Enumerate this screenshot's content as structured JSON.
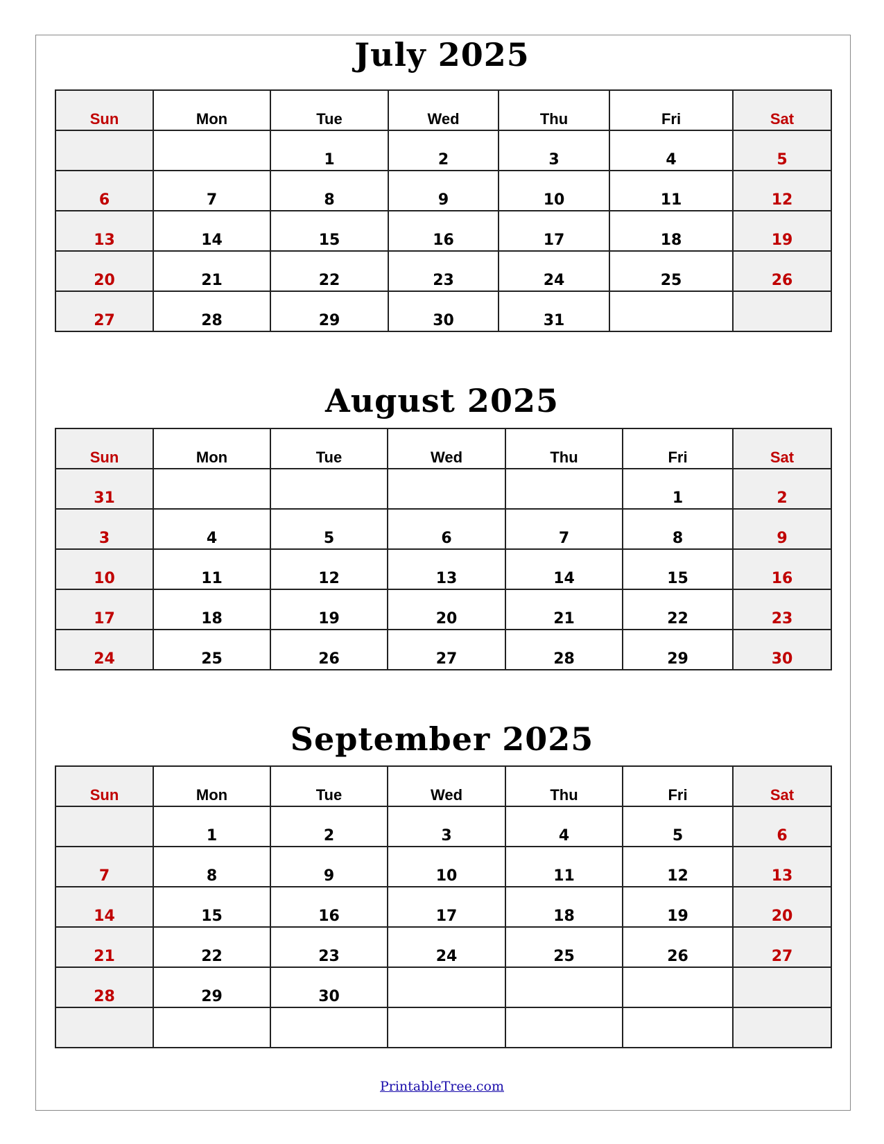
{
  "weekday_labels": [
    "Sun",
    "Mon",
    "Tue",
    "Wed",
    "Thu",
    "Fri",
    "Sat"
  ],
  "colors": {
    "weekend_text": "#c00000",
    "weekend_bg": "#f0f0f0",
    "link": "#1a0dab"
  },
  "months": [
    {
      "title": "July 2025",
      "weeks": [
        [
          "",
          "",
          "1",
          "2",
          "3",
          "4",
          "5"
        ],
        [
          "6",
          "7",
          "8",
          "9",
          "10",
          "11",
          "12"
        ],
        [
          "13",
          "14",
          "15",
          "16",
          "17",
          "18",
          "19"
        ],
        [
          "20",
          "21",
          "22",
          "23",
          "24",
          "25",
          "26"
        ],
        [
          "27",
          "28",
          "29",
          "30",
          "31",
          "",
          ""
        ]
      ]
    },
    {
      "title": "August 2025",
      "weeks": [
        [
          "31",
          "",
          "",
          "",
          "",
          "1",
          "2"
        ],
        [
          "3",
          "4",
          "5",
          "6",
          "7",
          "8",
          "9"
        ],
        [
          "10",
          "11",
          "12",
          "13",
          "14",
          "15",
          "16"
        ],
        [
          "17",
          "18",
          "19",
          "20",
          "21",
          "22",
          "23"
        ],
        [
          "24",
          "25",
          "26",
          "27",
          "28",
          "29",
          "30"
        ]
      ]
    },
    {
      "title": "September 2025",
      "weeks": [
        [
          "",
          "1",
          "2",
          "3",
          "4",
          "5",
          "6"
        ],
        [
          "7",
          "8",
          "9",
          "10",
          "11",
          "12",
          "13"
        ],
        [
          "14",
          "15",
          "16",
          "17",
          "18",
          "19",
          "20"
        ],
        [
          "21",
          "22",
          "23",
          "24",
          "25",
          "26",
          "27"
        ],
        [
          "28",
          "29",
          "30",
          "",
          "",
          "",
          ""
        ],
        [
          "",
          "",
          "",
          "",
          "",
          "",
          ""
        ]
      ]
    }
  ],
  "footer": {
    "link_text": "PrintableTree.com"
  }
}
